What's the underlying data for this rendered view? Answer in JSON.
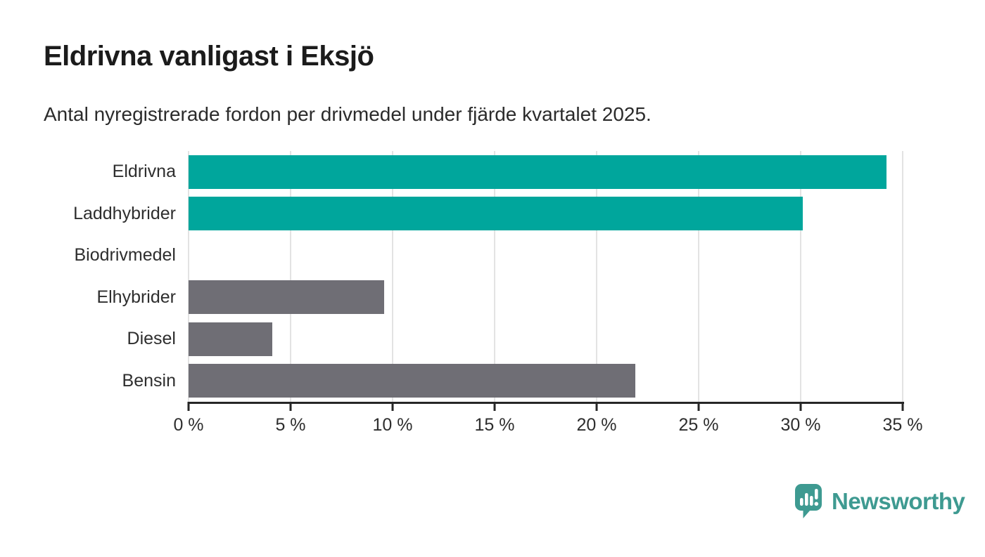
{
  "header": {
    "title": "Eldrivna vanligast i Eksjö",
    "subtitle": "Antal nyregistrerade fordon per drivmedel under fjärde kvartalet 2025."
  },
  "chart_data": {
    "type": "bar",
    "orientation": "horizontal",
    "title": "Eldrivna vanligast i Eksjö",
    "subtitle": "Antal nyregistrerade fordon per drivmedel under fjärde kvartalet 2025.",
    "categories": [
      "Eldrivna",
      "Laddhybrider",
      "Biodrivmedel",
      "Elhybrider",
      "Diesel",
      "Bensin"
    ],
    "values": [
      34.2,
      30.1,
      0,
      9.6,
      4.1,
      21.9
    ],
    "unit": "%",
    "bar_colors": [
      "#00a69c",
      "#00a69c",
      "#6f6e75",
      "#6f6e75",
      "#6f6e75",
      "#6f6e75"
    ],
    "xlim": [
      0,
      35
    ],
    "x_ticks": [
      0,
      5,
      10,
      15,
      20,
      25,
      30,
      35
    ],
    "x_tick_labels": [
      "0 %",
      "5 %",
      "10 %",
      "15 %",
      "20 %",
      "25 %",
      "30 %",
      "35 %"
    ],
    "grid": "vertical-gridlines-on",
    "legend": "none",
    "ylabel": "",
    "xlabel": ""
  },
  "colors": {
    "accent_teal": "#00a69c",
    "neutral_gray": "#6f6e75",
    "gridline": "#e3e3e3",
    "axis": "#262626",
    "brand_teal": "#3e9a91",
    "text_dark": "#1b1b1b",
    "text_body": "#2e2e2e"
  },
  "footer": {
    "brand": "Newsworthy"
  }
}
